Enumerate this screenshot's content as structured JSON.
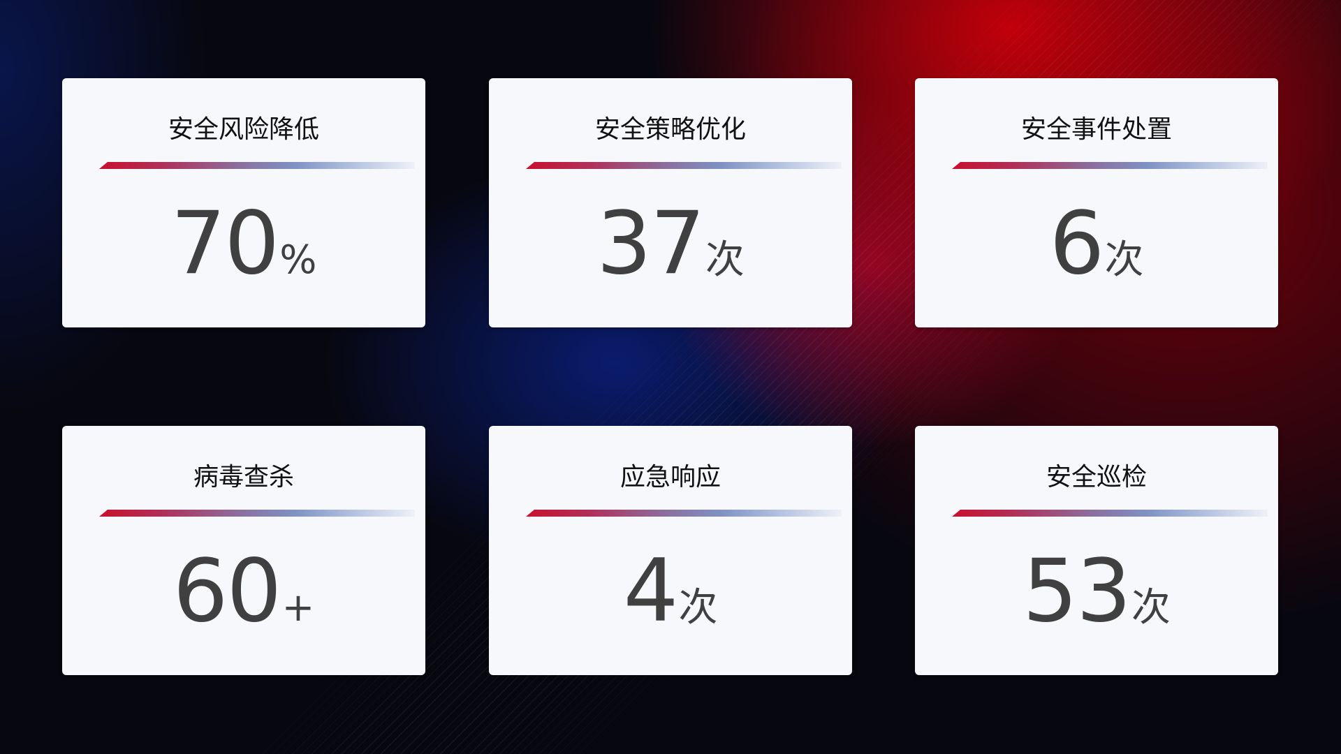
{
  "cards": [
    {
      "title": "安全风险降低",
      "value": "70",
      "unit": "%"
    },
    {
      "title": "安全策略优化",
      "value": "37",
      "unit": "次"
    },
    {
      "title": "安全事件处置",
      "value": "6",
      "unit": "次"
    },
    {
      "title": "病毒查杀",
      "value": "60",
      "unit": "+"
    },
    {
      "title": "应急响应",
      "value": "4",
      "unit": "次"
    },
    {
      "title": "安全巡检",
      "value": "53",
      "unit": "次"
    }
  ],
  "colors": {
    "accent_red": "#c8102e",
    "accent_blue": "#7f92c4",
    "card_bg": "#f6f8fc",
    "value_text": "#404040"
  }
}
